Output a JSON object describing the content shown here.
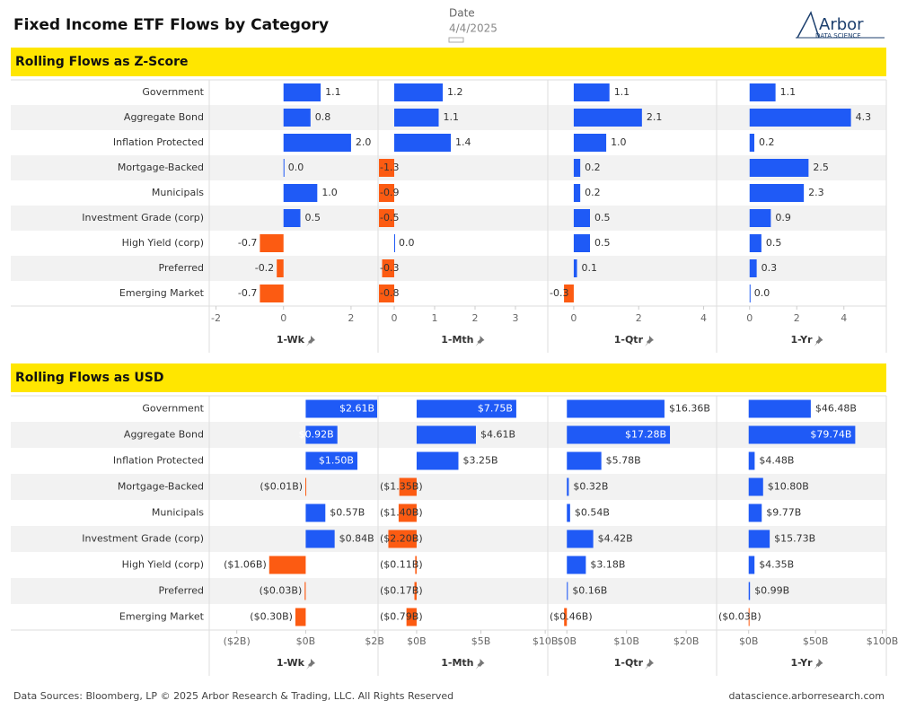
{
  "header": {
    "title": "Fixed Income ETF Flows by Category",
    "date_label": "Date",
    "date": "4/4/2025",
    "logo": "Arbor",
    "logo_sub": "DATA SCIENCE"
  },
  "footer": {
    "left": "Data Sources: Bloomberg, LP © 2025 Arbor Research & Trading, LLC. All Rights Reserved",
    "right": "datascience.arborresearch.com"
  },
  "chart_data": [
    {
      "type": "bar",
      "orientation": "horizontal",
      "title": "Rolling Flows as Z-Score",
      "colors": {
        "positive": "#1f5af6",
        "negative": "#fc5b12"
      },
      "categories": [
        "Government",
        "Aggregate Bond",
        "Inflation Protected",
        "Mortgage-Backed",
        "Municipals",
        "Investment Grade (corp)",
        "High Yield (corp)",
        "Preferred",
        "Emerging Market"
      ],
      "panels": [
        {
          "title": "1-Wk",
          "values": [
            1.1,
            0.8,
            2.0,
            0.0,
            1.0,
            0.5,
            -0.7,
            -0.2,
            -0.7
          ],
          "value_labels": [
            "1.1",
            "0.8",
            "2.0",
            "0.0",
            "1.0",
            "0.5",
            "-0.7",
            "-0.2",
            "-0.7"
          ],
          "xlim": [
            -2.2,
            2.8
          ],
          "xticks": [
            -2,
            0,
            2
          ]
        },
        {
          "title": "1-Mth",
          "values": [
            1.2,
            1.1,
            1.4,
            -1.3,
            -0.9,
            -0.5,
            0.0,
            -0.3,
            -0.8
          ],
          "value_labels": [
            "1.2",
            "1.1",
            "1.4",
            "-1.3",
            "-0.9",
            "-0.5",
            "0.0",
            "-0.3",
            "-0.8"
          ],
          "xlim": [
            -0.4,
            3.8
          ],
          "xticks": [
            0,
            1,
            2,
            3
          ]
        },
        {
          "title": "1-Qtr",
          "values": [
            1.1,
            2.1,
            1.0,
            0.2,
            0.2,
            0.5,
            0.5,
            0.1,
            -0.3
          ],
          "value_labels": [
            "1.1",
            "2.1",
            "1.0",
            "0.2",
            "0.2",
            "0.5",
            "0.5",
            "0.1",
            "-0.3"
          ],
          "xlim": [
            -0.8,
            4.4
          ],
          "xticks": [
            0,
            2,
            4
          ]
        },
        {
          "title": "1-Yr",
          "values": [
            1.1,
            4.3,
            0.2,
            2.5,
            2.3,
            0.9,
            0.5,
            0.3,
            0.0
          ],
          "value_labels": [
            "1.1",
            "4.3",
            "0.2",
            "2.5",
            "2.3",
            "0.9",
            "0.5",
            "0.3",
            "0.0"
          ],
          "xlim": [
            -1.4,
            5.8
          ],
          "xticks": [
            0,
            2,
            4
          ]
        }
      ]
    },
    {
      "type": "bar",
      "orientation": "horizontal",
      "title": "Rolling Flows as USD",
      "colors": {
        "positive": "#1f5af6",
        "negative": "#fc5b12"
      },
      "categories": [
        "Government",
        "Aggregate Bond",
        "Inflation Protected",
        "Mortgage-Backed",
        "Municipals",
        "Investment Grade (corp)",
        "High Yield (corp)",
        "Preferred",
        "Emerging Market"
      ],
      "panels": [
        {
          "title": "1-Wk",
          "values": [
            2.61,
            0.92,
            1.5,
            -0.01,
            0.57,
            0.84,
            -1.06,
            -0.03,
            -0.3
          ],
          "value_labels": [
            "$2.61B",
            "$0.92B",
            "$1.50B",
            "($0.01B)",
            "$0.57B",
            "$0.84B",
            "($1.06B)",
            "($0.03B)",
            "($0.30B)"
          ],
          "xlim": [
            -2.8,
            2.1
          ],
          "xticks": [
            {
              "value": -2,
              "label": "($2B)"
            },
            {
              "value": 0,
              "label": "$0B"
            },
            {
              "value": 2,
              "label": "$2B"
            }
          ]
        },
        {
          "title": "1-Mth",
          "values": [
            7.75,
            4.61,
            3.25,
            -1.35,
            -1.4,
            -2.2,
            -0.11,
            -0.17,
            -0.79
          ],
          "value_labels": [
            "$7.75B",
            "$4.61B",
            "$3.25B",
            "($1.35B)",
            "($1.40B)",
            "($2.20B)",
            "($0.11B)",
            "($0.17B)",
            "($0.79B)"
          ],
          "xlim": [
            -3.0,
            10.2
          ],
          "xticks": [
            {
              "value": 0,
              "label": "$0B"
            },
            {
              "value": 5,
              "label": "$5B"
            },
            {
              "value": 10,
              "label": "$10B"
            }
          ]
        },
        {
          "title": "1-Qtr",
          "values": [
            16.36,
            17.28,
            5.78,
            0.32,
            0.54,
            4.42,
            3.18,
            0.16,
            -0.46
          ],
          "value_labels": [
            "$16.36B",
            "$17.28B",
            "$5.78B",
            "$0.32B",
            "$0.54B",
            "$4.42B",
            "$3.18B",
            "$0.16B",
            "($0.46B)"
          ],
          "xlim": [
            -3.2,
            25.1
          ],
          "xticks": [
            {
              "value": 0,
              "label": "$0B"
            },
            {
              "value": 10,
              "label": "$10B"
            },
            {
              "value": 20,
              "label": "$20B"
            }
          ]
        },
        {
          "title": "1-Yr",
          "values": [
            46.48,
            79.74,
            4.48,
            10.8,
            9.77,
            15.73,
            4.35,
            0.99,
            -0.03
          ],
          "value_labels": [
            "$46.48B",
            "$79.74B",
            "$4.48B",
            "$10.80B",
            "$9.77B",
            "$15.73B",
            "$4.35B",
            "$0.99B",
            "($0.03B)"
          ],
          "xlim": [
            -24,
            103
          ],
          "xticks": [
            {
              "value": 0,
              "label": "$0B"
            },
            {
              "value": 50,
              "label": "$50B"
            },
            {
              "value": 100,
              "label": "$100B"
            }
          ]
        }
      ]
    }
  ]
}
